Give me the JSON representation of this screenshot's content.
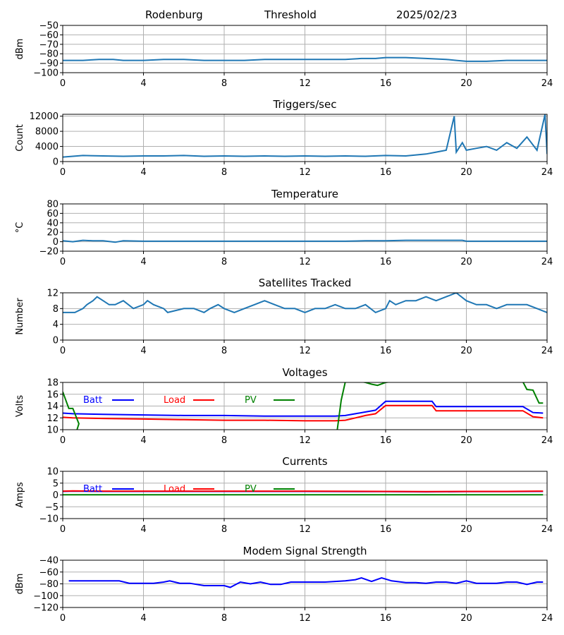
{
  "header": {
    "station": "Rodenburg",
    "mode": "Threshold",
    "date": "2025/02/23"
  },
  "colors": {
    "series_default": "#1f77b4",
    "batt": "#0000ff",
    "load": "#ff0000",
    "pv": "#008000",
    "grid": "#b0b0b0"
  },
  "chart_data": [
    {
      "type": "line",
      "title": "",
      "ylabel": "dBm",
      "ylim": [
        -100,
        -50
      ],
      "yticks": [
        -50,
        -60,
        -70,
        -80,
        -90,
        -100
      ],
      "xlim": [
        0,
        24
      ],
      "xticks": [
        0,
        4,
        8,
        12,
        16,
        20,
        24
      ],
      "grid": true,
      "series": [
        {
          "color": "#1f77b4",
          "x": [
            0,
            1,
            1.8,
            2.5,
            3,
            4,
            5,
            6,
            7,
            8,
            9,
            10,
            11,
            12,
            13,
            14,
            14.8,
            15.5,
            16,
            16.5,
            17,
            18,
            19,
            19.5,
            20,
            21,
            22,
            23,
            24
          ],
          "y": [
            -87,
            -87,
            -86,
            -86,
            -87,
            -87,
            -86,
            -86,
            -87,
            -87,
            -87,
            -86,
            -86,
            -86,
            -86,
            -86,
            -85,
            -85,
            -84,
            -84,
            -84,
            -85,
            -86,
            -87,
            -88,
            -88,
            -87,
            -87,
            -87
          ]
        }
      ]
    },
    {
      "type": "line",
      "title": "Triggers/sec",
      "ylabel": "Count",
      "ylim": [
        0,
        12500
      ],
      "yticks": [
        0,
        4000,
        8000,
        12000
      ],
      "xlim": [
        0,
        24
      ],
      "xticks": [
        0,
        4,
        8,
        12,
        16,
        20,
        24
      ],
      "grid": true,
      "series": [
        {
          "color": "#1f77b4",
          "x": [
            0,
            1,
            2,
            3,
            4,
            5,
            6,
            7,
            8,
            9,
            10,
            11,
            12,
            13,
            14,
            15,
            16,
            17,
            18,
            18.5,
            19,
            19.4,
            19.5,
            19.8,
            20,
            20.5,
            21,
            21.5,
            22,
            22.5,
            23,
            23.5,
            23.9,
            24
          ],
          "y": [
            1200,
            1600,
            1500,
            1400,
            1500,
            1500,
            1600,
            1400,
            1500,
            1400,
            1500,
            1400,
            1500,
            1400,
            1500,
            1400,
            1600,
            1500,
            2000,
            2500,
            3000,
            12000,
            2500,
            5000,
            3000,
            3500,
            4000,
            3000,
            5000,
            3500,
            6500,
            3000,
            12500,
            2000
          ]
        }
      ]
    },
    {
      "type": "line",
      "title": "Temperature",
      "ylabel": "°C",
      "ylim": [
        -20,
        80
      ],
      "yticks": [
        -20,
        0,
        20,
        40,
        60,
        80
      ],
      "xlim": [
        0,
        24
      ],
      "xticks": [
        0,
        4,
        8,
        12,
        16,
        20,
        24
      ],
      "grid": true,
      "series": [
        {
          "color": "#1f77b4",
          "x": [
            0,
            0.5,
            1,
            1.5,
            2,
            2.6,
            3,
            4,
            6,
            8,
            10,
            12,
            14,
            15,
            16,
            17,
            18,
            19,
            19.8,
            20,
            21,
            22,
            23,
            24
          ],
          "y": [
            2,
            0,
            3,
            2,
            2,
            -1,
            2,
            1,
            1,
            1,
            1,
            1,
            1,
            2,
            2,
            3,
            3,
            3,
            3,
            1,
            1,
            1,
            1,
            1
          ]
        }
      ]
    },
    {
      "type": "line",
      "title": "Satellites Tracked",
      "ylabel": "Number",
      "ylim": [
        0,
        12
      ],
      "yticks": [
        0,
        4,
        8,
        12
      ],
      "xlim": [
        0,
        24
      ],
      "xticks": [
        0,
        4,
        8,
        12,
        16,
        20,
        24
      ],
      "grid": true,
      "series": [
        {
          "color": "#1f77b4",
          "x": [
            0,
            0.6,
            1,
            1.2,
            1.5,
            1.7,
            2,
            2.3,
            2.6,
            3,
            3.5,
            4,
            4.2,
            4.5,
            5,
            5.2,
            6,
            6.5,
            7,
            7.3,
            7.7,
            8,
            8.5,
            9,
            9.5,
            10,
            10.5,
            11,
            11.5,
            12,
            12.5,
            13,
            13.5,
            14,
            14.5,
            15,
            15.5,
            16,
            16.2,
            16.5,
            17,
            17.5,
            18,
            18.5,
            19,
            19.5,
            20,
            20.5,
            21,
            21.5,
            22,
            22.5,
            23,
            23.5,
            24
          ],
          "y": [
            7,
            7,
            8,
            9,
            10,
            11,
            10,
            9,
            9,
            10,
            8,
            9,
            10,
            9,
            8,
            7,
            8,
            8,
            7,
            8,
            9,
            8,
            7,
            8,
            9,
            10,
            9,
            8,
            8,
            7,
            8,
            8,
            9,
            8,
            8,
            9,
            7,
            8,
            10,
            9,
            10,
            10,
            11,
            10,
            11,
            12,
            10,
            9,
            9,
            8,
            9,
            9,
            9,
            8,
            7
          ]
        }
      ]
    },
    {
      "type": "line",
      "title": "Voltages",
      "ylabel": "Volts",
      "ylim": [
        10,
        18
      ],
      "yticks": [
        10,
        12,
        14,
        16,
        18
      ],
      "xlim": [
        0,
        24
      ],
      "xticks": [
        0,
        4,
        8,
        12,
        16,
        20,
        24
      ],
      "grid": true,
      "legend": "top-left",
      "series": [
        {
          "name": "Batt",
          "color": "#0000ff",
          "x": [
            0,
            0.5,
            2,
            4,
            6,
            8,
            10,
            12,
            13.5,
            14,
            14.5,
            15,
            15.5,
            16,
            16.2,
            17,
            18,
            18.3,
            18.5,
            19,
            20,
            21,
            22,
            22.8,
            23.3,
            23.8
          ],
          "y": [
            12.8,
            12.7,
            12.6,
            12.5,
            12.4,
            12.4,
            12.3,
            12.3,
            12.3,
            12.4,
            12.7,
            13,
            13.3,
            14.8,
            14.8,
            14.8,
            14.8,
            14.8,
            13.9,
            13.9,
            13.9,
            13.9,
            13.9,
            13.9,
            12.9,
            12.8
          ]
        },
        {
          "name": "Load",
          "color": "#ff0000",
          "x": [
            0,
            0.5,
            2,
            4,
            6,
            8,
            10,
            12,
            13.5,
            14,
            14.5,
            15,
            15.5,
            16,
            16.2,
            17,
            18,
            18.3,
            18.5,
            19,
            20,
            21,
            22,
            22.8,
            23.3,
            23.8
          ],
          "y": [
            12.1,
            12.0,
            11.9,
            11.8,
            11.7,
            11.6,
            11.6,
            11.5,
            11.5,
            11.6,
            12,
            12.4,
            12.7,
            14.1,
            14.1,
            14.1,
            14.1,
            14.1,
            13.2,
            13.2,
            13.2,
            13.2,
            13.2,
            13.2,
            12.2,
            12.0
          ]
        },
        {
          "name": "PV",
          "color": "#008000",
          "x": [
            0,
            0.3,
            0.5,
            0.8,
            0.7,
            13.6,
            13.8,
            14,
            14.3,
            15,
            15.3,
            15.6,
            16,
            16.2,
            22.8,
            23,
            23.3,
            23.6,
            23.8
          ],
          "y": [
            16.4,
            13.6,
            13.6,
            11.0,
            9.9,
            9.9,
            15,
            18.1,
            18.4,
            18.0,
            17.7,
            17.5,
            18.0,
            18.1,
            18.1,
            16.8,
            16.7,
            14.5,
            14.5
          ]
        }
      ]
    },
    {
      "type": "line",
      "title": "Currents",
      "ylabel": "Amps",
      "ylim": [
        -10,
        10
      ],
      "yticks": [
        -10,
        -5,
        0,
        5,
        10
      ],
      "xlim": [
        0,
        24
      ],
      "xticks": [
        0,
        4,
        8,
        12,
        16,
        20,
        24
      ],
      "grid": true,
      "legend": "top-left",
      "series": [
        {
          "name": "Batt",
          "color": "#0000ff",
          "x": [
            0,
            0.5,
            2,
            4,
            8,
            12,
            16,
            18,
            20,
            22,
            23.8
          ],
          "y": [
            1.5,
            1.6,
            1.5,
            1.5,
            1.5,
            1.5,
            1.4,
            1.3,
            1.4,
            1.4,
            1.5
          ]
        },
        {
          "name": "Load",
          "color": "#ff0000",
          "x": [
            0,
            0.5,
            2,
            4,
            8,
            12,
            16,
            18,
            20,
            22,
            23.8
          ],
          "y": [
            1.6,
            1.7,
            1.6,
            1.6,
            1.6,
            1.6,
            1.5,
            1.4,
            1.5,
            1.5,
            1.6
          ]
        },
        {
          "name": "PV",
          "color": "#008000",
          "x": [
            0,
            23.8
          ],
          "y": [
            0.1,
            0.1
          ]
        }
      ]
    },
    {
      "type": "line",
      "title": "Modem Signal Strength",
      "ylabel": "dBm",
      "ylim": [
        -120,
        -40
      ],
      "yticks": [
        -40,
        -60,
        -80,
        -100,
        -120
      ],
      "xlim": [
        0,
        24
      ],
      "xticks": [
        0,
        4,
        8,
        12,
        16,
        20,
        24
      ],
      "grid": true,
      "series": [
        {
          "color": "#0000ff",
          "x": [
            0.3,
            1,
            2,
            2.8,
            3.3,
            4,
            4.5,
            5,
            5.3,
            5.8,
            6.3,
            7,
            7.5,
            8,
            8.3,
            8.8,
            9.3,
            9.8,
            10.3,
            10.8,
            11.3,
            12,
            13,
            14,
            14.5,
            14.8,
            15.3,
            15.8,
            16.3,
            17,
            17.5,
            18,
            18.5,
            19,
            19.5,
            20,
            20.5,
            21,
            21.5,
            22,
            22.5,
            23,
            23.5,
            23.8
          ],
          "y": [
            -75,
            -75,
            -75,
            -75,
            -79,
            -79,
            -79,
            -77,
            -75,
            -79,
            -79,
            -83,
            -83,
            -83,
            -86,
            -77,
            -80,
            -77,
            -81,
            -81,
            -77,
            -77,
            -77,
            -75,
            -73,
            -70,
            -76,
            -70,
            -75,
            -78,
            -78,
            -79,
            -77,
            -77,
            -79,
            -75,
            -79,
            -79,
            -79,
            -77,
            -77,
            -81,
            -77,
            -77
          ]
        }
      ]
    }
  ]
}
